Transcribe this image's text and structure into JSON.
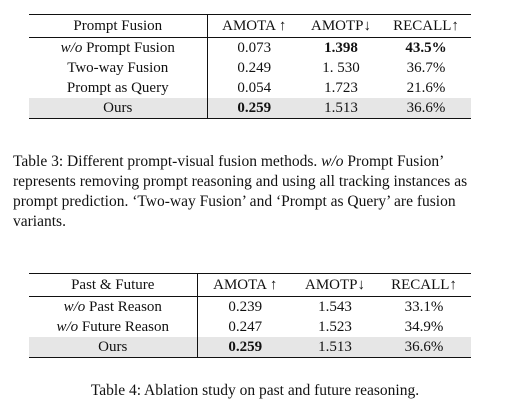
{
  "table3": {
    "headers": [
      "Prompt Fusion",
      "AMOTA ↑",
      "AMOTP↓",
      "RECALL↑"
    ],
    "rows": [
      {
        "prefix": "w/o",
        "name": " Prompt Fusion",
        "amota": "0.073",
        "amotp": "1.398",
        "recall": "43.5%"
      },
      {
        "prefix": "",
        "name": "Two-way Fusion",
        "amota": "0.249",
        "amotp": "1. 530",
        "recall": "36.7%"
      },
      {
        "prefix": "",
        "name": "Prompt as Query",
        "amota": "0.054",
        "amotp": "1.723",
        "recall": "21.6%"
      },
      {
        "prefix": "",
        "name": "Ours",
        "amota": "0.259",
        "amotp": "1.513",
        "recall": "36.6%"
      }
    ],
    "caption_prefix": "Table 3: Different prompt-visual fusion methods. ",
    "caption_italic": "w/o",
    "caption_rest": " Prompt Fusion’ represents removing prompt reasoning and using all tracking instances as prompt prediction. ‘Two-way Fusion’ and ‘Prompt as Query’ are fusion variants."
  },
  "table4": {
    "headers": [
      "Past & Future",
      "AMOTA ↑",
      "AMOTP↓",
      "RECALL↑"
    ],
    "rows": [
      {
        "prefix": "w/o",
        "name": " Past Reason",
        "amota": "0.239",
        "amotp": "1.543",
        "recall": "33.1%"
      },
      {
        "prefix": "w/o",
        "name": " Future Reason",
        "amota": "0.247",
        "amotp": "1.523",
        "recall": "34.9%"
      },
      {
        "prefix": "",
        "name": "Ours",
        "amota": "0.259",
        "amotp": "1.513",
        "recall": "36.6%"
      }
    ],
    "caption": "Table 4: Ablation study on past and future reasoning."
  }
}
